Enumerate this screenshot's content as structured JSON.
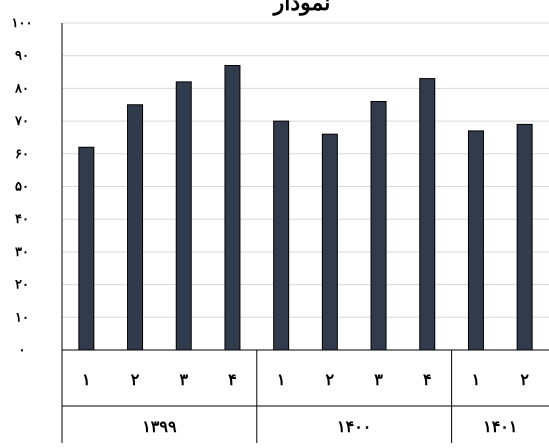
{
  "chart_data": {
    "type": "bar",
    "title": "نمودار",
    "xlabel": "",
    "ylabel": "",
    "ylim": [
      0,
      100
    ],
    "yticks": [
      "۰",
      "۱۰",
      "۲۰",
      "۳۰",
      "۴۰",
      "۵۰",
      "۶۰",
      "۷۰",
      "۸۰",
      "۹۰",
      "۱۰۰"
    ],
    "grid": true,
    "categories": [
      "۱",
      "۲",
      "۳",
      "۴",
      "۱",
      "۲",
      "۳",
      "۴",
      "۱",
      "۲"
    ],
    "values": [
      62,
      75,
      82,
      87,
      70,
      66,
      76,
      83,
      67,
      69
    ],
    "groups": [
      {
        "label": "۱۳۹۹",
        "count": 4
      },
      {
        "label": "۱۴۰۰",
        "count": 4
      },
      {
        "label": "۱۴۰۱",
        "count": 2
      }
    ],
    "colors": {
      "bar": "#323b4c",
      "bar_outline": "#000000",
      "grid": "#d9d9d9",
      "axis": "#000000"
    }
  }
}
